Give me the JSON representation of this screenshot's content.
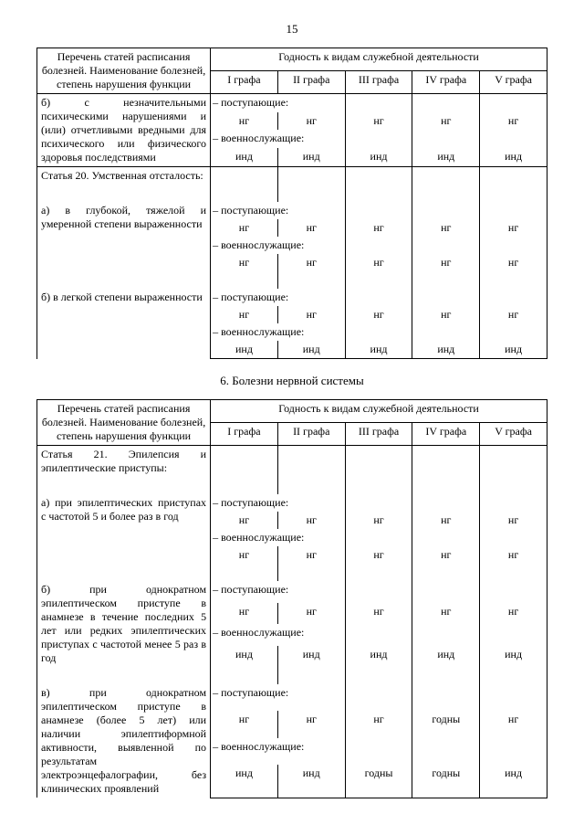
{
  "page_number": "15",
  "section_title": "6. Болезни нервной системы",
  "header_left": "Перечень статей расписания болезней. Наименование болезней, степень нарушения функции",
  "header_right": "Годность к видам служебной деятельности",
  "cols": [
    "I графа",
    "II графа",
    "III графа",
    "IV графа",
    "V графа"
  ],
  "label_applicants": "– поступающие:",
  "label_service": "– военнослужащие:",
  "table1": {
    "rows": [
      {
        "desc": "б) с незначительными психическими нарушениями и (или) отчетливыми вредными для психического или физического здоровья последствиями",
        "app": [
          "нг",
          "нг",
          "нг",
          "нг",
          "нг"
        ],
        "srv": [
          "инд",
          "инд",
          "инд",
          "инд",
          "инд"
        ]
      },
      {
        "title": "Статья 20. Умственная отсталость:",
        "items": [
          {
            "desc": "а) в глубокой, тяжелой и умеренной степени выраженности",
            "app": [
              "нг",
              "нг",
              "нг",
              "нг",
              "нг"
            ],
            "srv": [
              "нг",
              "нг",
              "нг",
              "нг",
              "нг"
            ]
          },
          {
            "desc": "б) в легкой степени выраженности",
            "app": [
              "нг",
              "нг",
              "нг",
              "нг",
              "нг"
            ],
            "srv": [
              "инд",
              "инд",
              "инд",
              "инд",
              "инд"
            ]
          }
        ]
      }
    ]
  },
  "table2": {
    "rows": [
      {
        "title": "Статья 21. Эпилепсия и эпилептические приступы:",
        "items": [
          {
            "desc": "а) при эпилептических приступах с частотой 5 и более раз в год",
            "app": [
              "нг",
              "нг",
              "нг",
              "нг",
              "нг"
            ],
            "srv": [
              "нг",
              "нг",
              "нг",
              "нг",
              "нг"
            ]
          },
          {
            "desc": "б) при однократном эпилептическом приступе в анамнезе в течение последних 5 лет или редких эпилептических приступах с частотой менее 5 раз в год",
            "app": [
              "нг",
              "нг",
              "нг",
              "нг",
              "нг"
            ],
            "srv": [
              "инд",
              "инд",
              "инд",
              "инд",
              "инд"
            ]
          },
          {
            "desc": "в) при однократном эпилептическом приступе в анамнезе (более 5 лет) или наличии эпилептиформной активности, выявленной по результатам электроэнцефалографии, без клинических проявлений",
            "app": [
              "нг",
              "нг",
              "нг",
              "годны",
              "нг"
            ],
            "srv": [
              "инд",
              "инд",
              "годны",
              "годны",
              "инд"
            ]
          }
        ]
      }
    ]
  }
}
